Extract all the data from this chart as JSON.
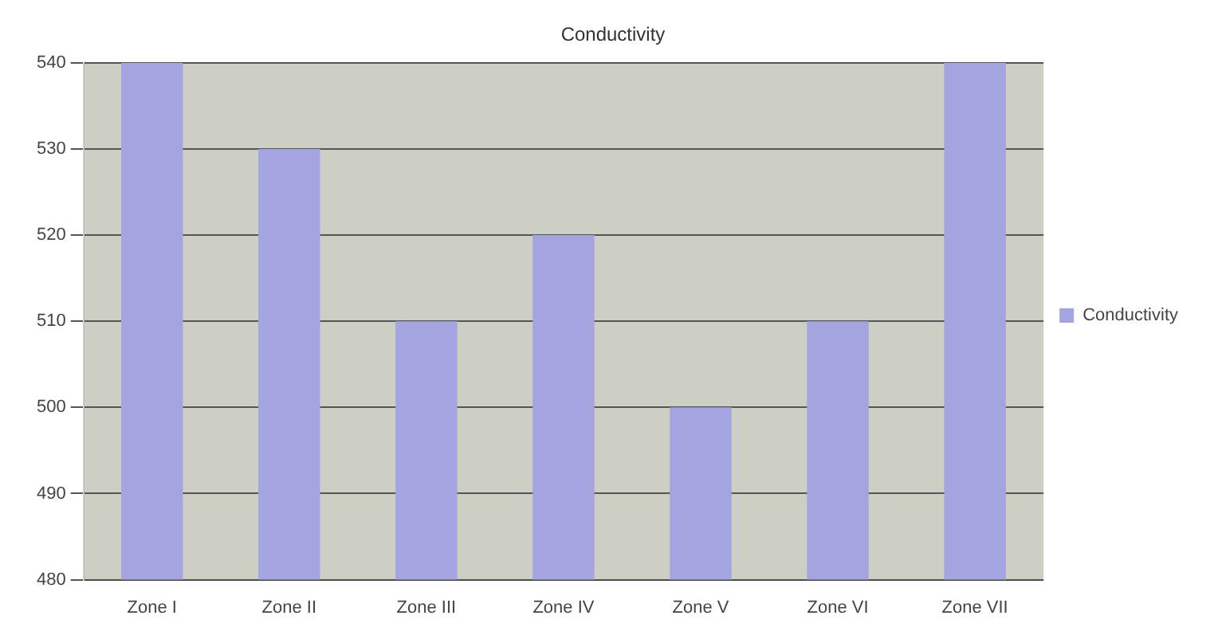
{
  "chart_data": {
    "type": "bar",
    "title": "Conductivity",
    "categories": [
      "Zone I",
      "Zone II",
      "Zone III",
      "Zone IV",
      "Zone V",
      "Zone VI",
      "Zone VII"
    ],
    "series": [
      {
        "name": "Conductivity",
        "color": "#a4a4e0",
        "values": [
          540,
          530,
          510,
          520,
          500,
          510,
          540
        ]
      }
    ],
    "ylim": [
      480,
      540
    ],
    "yticks": [
      480,
      490,
      500,
      510,
      520,
      530,
      540
    ],
    "grid": "y",
    "legend": "right"
  }
}
